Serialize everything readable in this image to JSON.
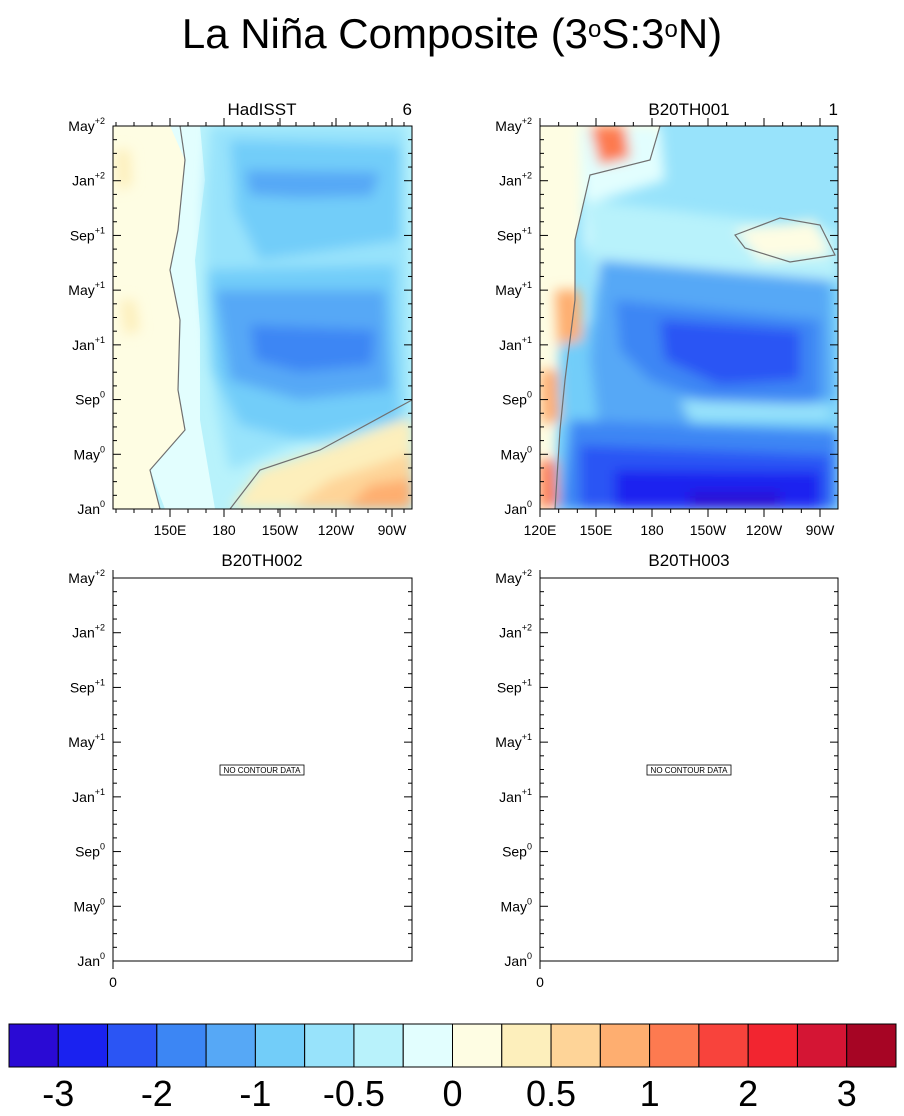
{
  "title": {
    "prefix": "La Niña Composite (3",
    "sup1": "o",
    "middle": "S:3",
    "sup2": "o",
    "suffix": "N)"
  },
  "panels": [
    {
      "id": "hadisst",
      "name": "HadISST",
      "count": "6",
      "has_data": true,
      "x_ticks": [
        "150E",
        "180",
        "150W",
        "120W",
        "90W"
      ]
    },
    {
      "id": "b20th001",
      "name": "B20TH001",
      "count": "1",
      "has_data": true,
      "x_ticks": [
        "120E",
        "150E",
        "180",
        "150W",
        "120W",
        "90W"
      ]
    },
    {
      "id": "b20th002",
      "name": "B20TH002",
      "count": "",
      "has_data": false,
      "x_ticks": [
        "0"
      ],
      "message": "NO CONTOUR DATA"
    },
    {
      "id": "b20th003",
      "name": "B20TH003",
      "count": "",
      "has_data": false,
      "x_ticks": [
        "0"
      ],
      "message": "NO CONTOUR DATA"
    }
  ],
  "y_ticks": [
    {
      "base": "May",
      "sup": "+2"
    },
    {
      "base": "Jan",
      "sup": "+2"
    },
    {
      "base": "Sep",
      "sup": "+1"
    },
    {
      "base": "May",
      "sup": "+1"
    },
    {
      "base": "Jan",
      "sup": "+1"
    },
    {
      "base": "Sep",
      "sup": "0"
    },
    {
      "base": "May",
      "sup": "0"
    },
    {
      "base": "Jan",
      "sup": "0"
    }
  ],
  "colorbar": {
    "colors": [
      "#2a0ad4",
      "#1a22f0",
      "#2b55f4",
      "#3c86f4",
      "#56a8f6",
      "#72cdf9",
      "#98e3fb",
      "#b8f2fb",
      "#e2fefe",
      "#fefde3",
      "#fdefbc",
      "#fed498",
      "#feae70",
      "#fd7a50",
      "#f8433c",
      "#f22530",
      "#d41534",
      "#a60524"
    ],
    "labels": [
      "-3",
      "-2",
      "-1",
      "-0.5",
      "0",
      "0.5",
      "1",
      "2",
      "3"
    ]
  },
  "chart_data": [
    {
      "type": "heatmap",
      "title": "HadISST",
      "count_label": "6",
      "x_ticks": [
        "150E",
        "180",
        "150W",
        "120W",
        "90W"
      ],
      "y_ticks": [
        "May+2",
        "Jan+2",
        "Sep+1",
        "May+1",
        "Jan+1",
        "Sep0",
        "May0",
        "Jan0"
      ],
      "colorbar_levels": [
        -3,
        -2,
        -1,
        -0.5,
        0,
        0.5,
        1,
        2,
        3
      ],
      "features": [
        {
          "region": "western Pacific 120E-150E, all months",
          "value_range": [
            0,
            0.5
          ]
        },
        {
          "region": "central Pacific 180-120W, Jan+1",
          "value_range": [
            -2,
            -1
          ]
        },
        {
          "region": "central Pacific 170E-120W, Jan+2",
          "value_range": [
            -2,
            -1
          ]
        },
        {
          "region": "eastern Pacific 120W-80W, Jan0-May0",
          "value_range": [
            0.5,
            1
          ]
        }
      ]
    },
    {
      "type": "heatmap",
      "title": "B20TH001",
      "count_label": "1",
      "x_ticks": [
        "120E",
        "150E",
        "180",
        "150W",
        "120W",
        "90W"
      ],
      "y_ticks": [
        "May+2",
        "Jan+2",
        "Sep+1",
        "May+1",
        "Jan+1",
        "Sep0",
        "May0",
        "Jan0"
      ],
      "colorbar_levels": [
        -3,
        -2,
        -1,
        -0.5,
        0,
        0.5,
        1,
        2,
        3
      ],
      "features": [
        {
          "region": "120E-140E, Jan0-Jan+1",
          "value_range": [
            0.5,
            1
          ]
        },
        {
          "region": "near 150E, May+2",
          "value_range": [
            0.5,
            1
          ]
        },
        {
          "region": "170E-100W, Jan0-May0",
          "value_range": [
            -3,
            -2
          ]
        },
        {
          "region": "170E-100W, Jan+1",
          "value_range": [
            -2,
            -1
          ]
        },
        {
          "region": "135W-95W, Sep+1",
          "value_range": [
            0,
            0.5
          ]
        }
      ]
    },
    {
      "type": "heatmap",
      "title": "B20TH002",
      "x_ticks": [
        "0"
      ],
      "y_ticks": [
        "May+2",
        "Jan+2",
        "Sep+1",
        "May+1",
        "Jan+1",
        "Sep0",
        "May0",
        "Jan0"
      ],
      "annotation": "NO CONTOUR DATA"
    },
    {
      "type": "heatmap",
      "title": "B20TH003",
      "x_ticks": [
        "0"
      ],
      "y_ticks": [
        "May+2",
        "Jan+2",
        "Sep+1",
        "May+1",
        "Jan+1",
        "Sep0",
        "May0",
        "Jan0"
      ],
      "annotation": "NO CONTOUR DATA"
    }
  ]
}
